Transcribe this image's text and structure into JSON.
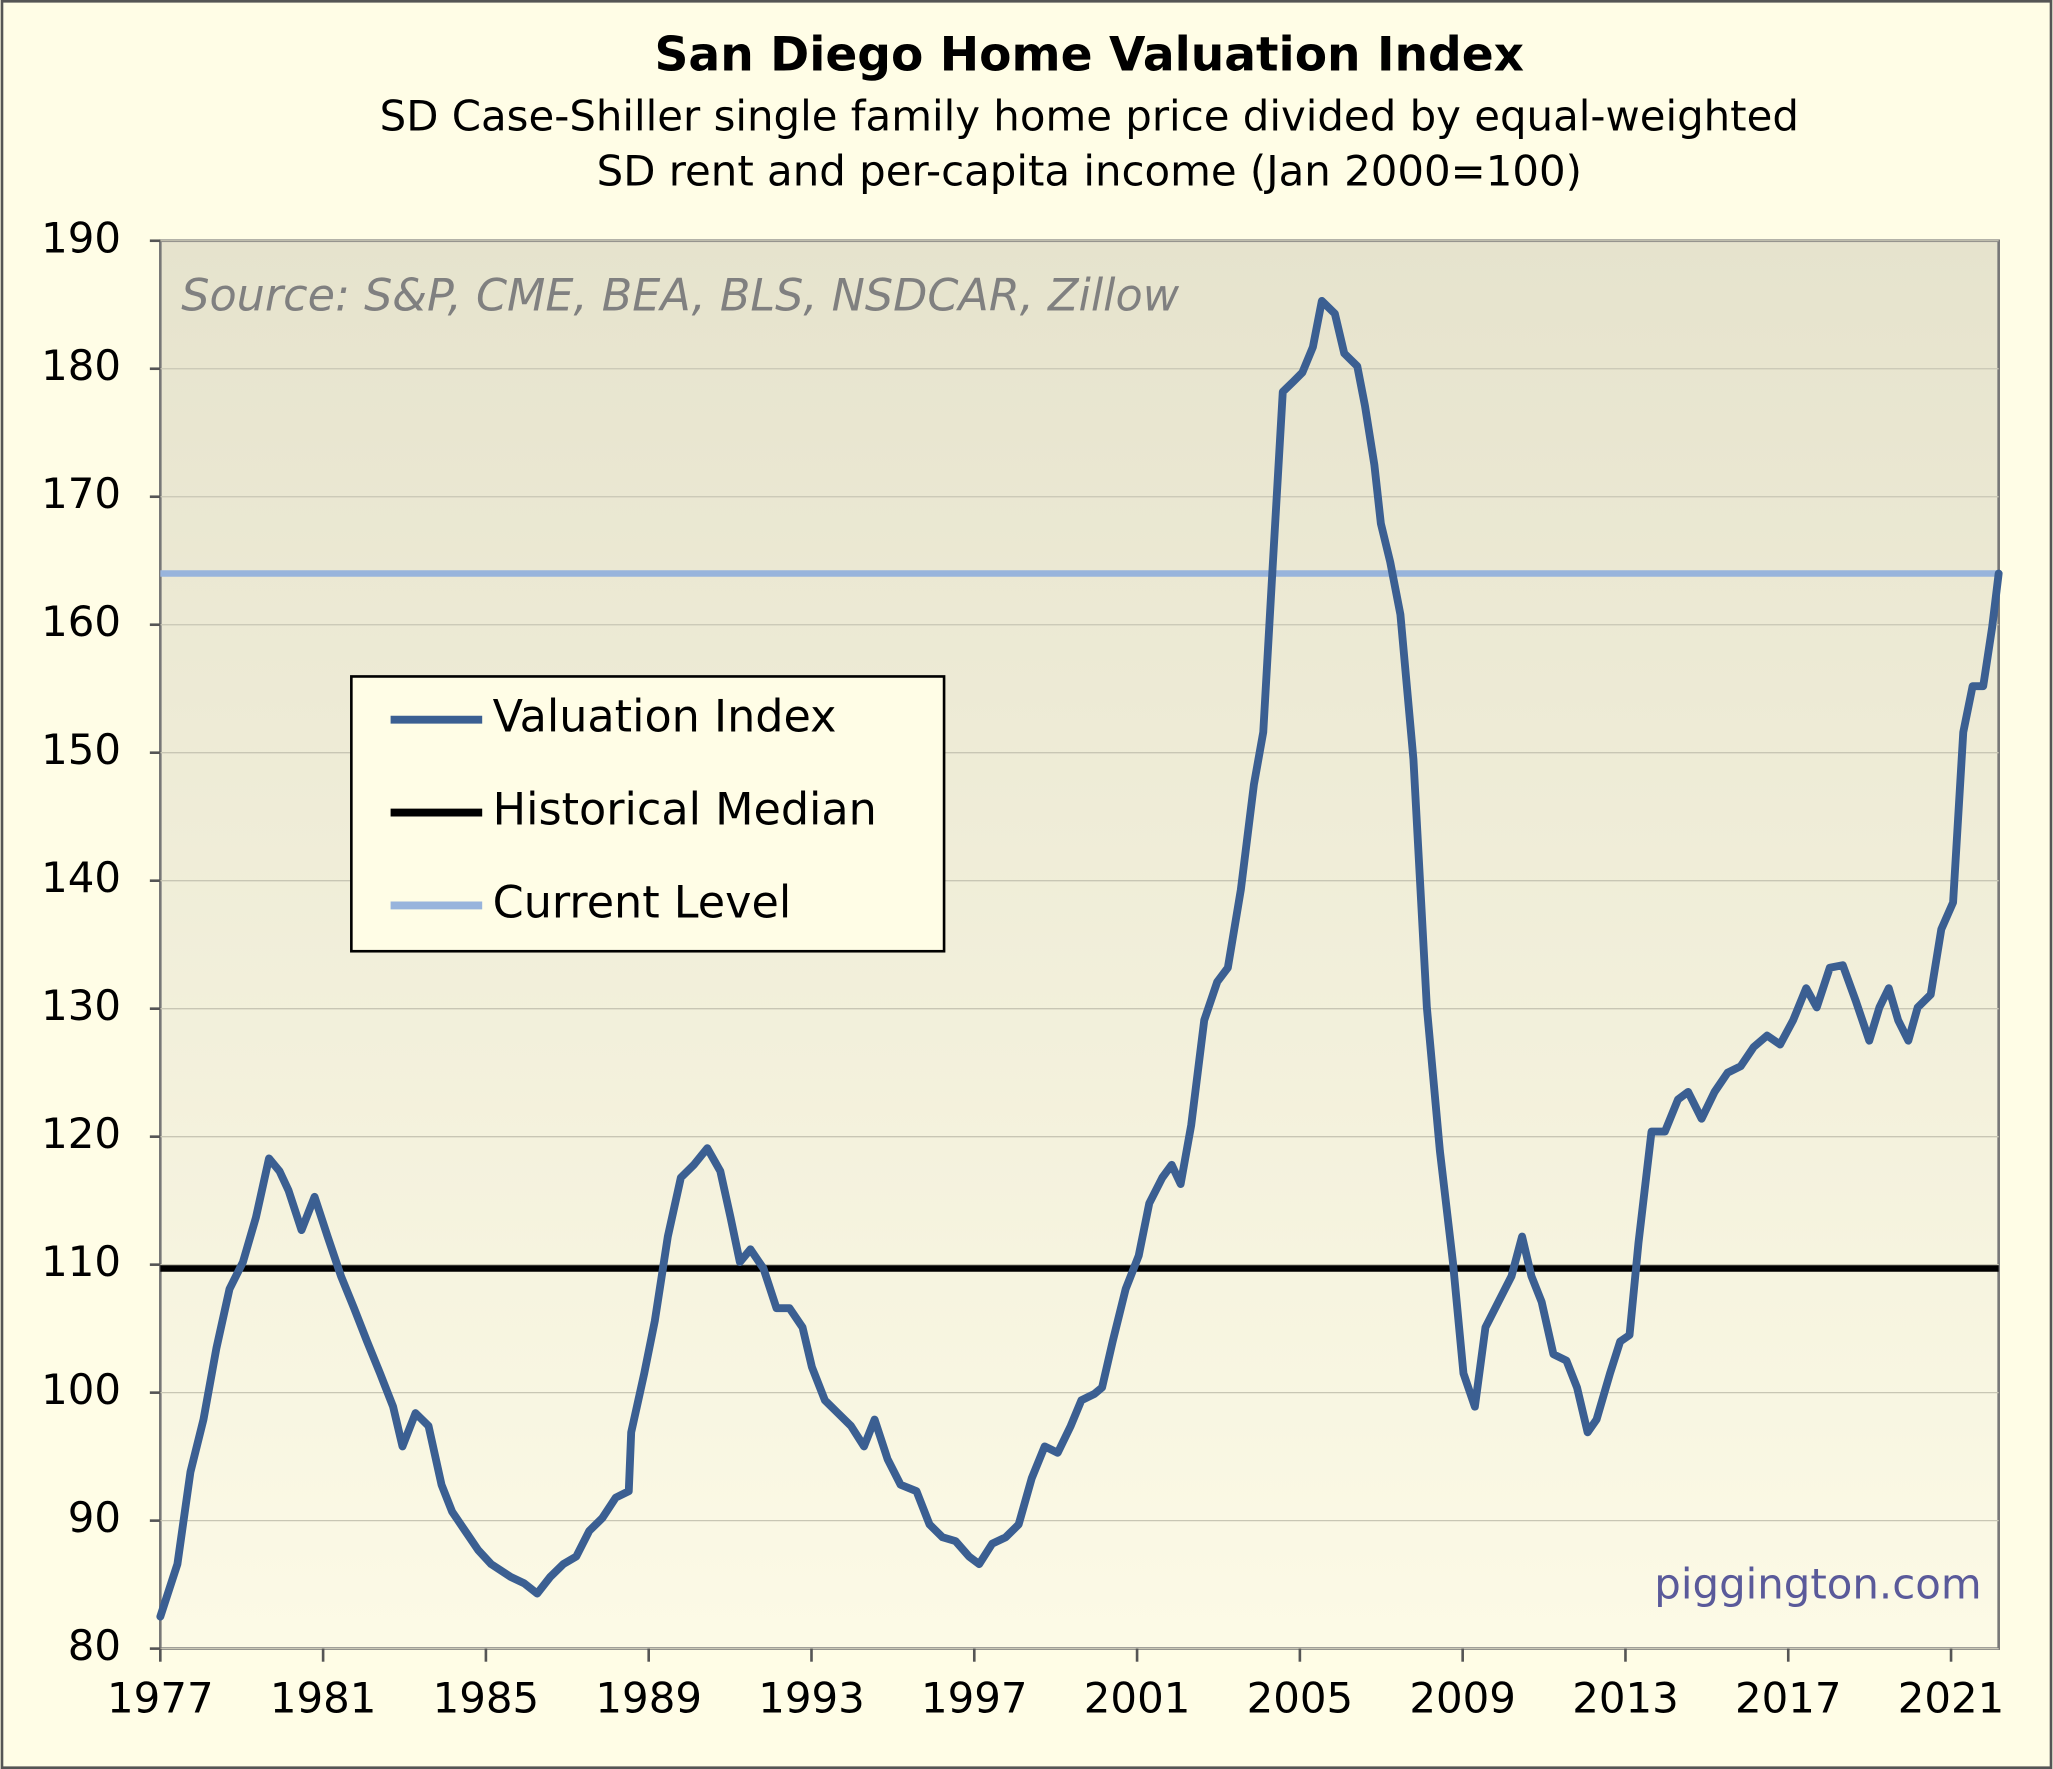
{
  "chart_data": {
    "type": "line",
    "title": "San Diego Home Valuation Index",
    "subtitle": [
      "SD Case-Shiller single family home price divided by equal-weighted",
      "SD rent and per-capita income (Jan 2000=100)"
    ],
    "source": "Source: S&P, CME, BEA, BLS, NSDCAR, Zillow",
    "watermark": "piggington.com",
    "xlim": [
      1977,
      2022.17
    ],
    "xticks": [
      1977,
      1981,
      1985,
      1989,
      1993,
      1997,
      2001,
      2005,
      2009,
      2013,
      2017,
      2021
    ],
    "ylim": [
      80,
      190
    ],
    "yticks": [
      80,
      90,
      100,
      110,
      120,
      130,
      140,
      150,
      160,
      170,
      180,
      190
    ],
    "grid": true,
    "series": [
      {
        "name": "Valuation Index",
        "color": "#3b5f92",
        "x": [
          1977.0,
          1977.42,
          1977.74,
          1978.06,
          1978.38,
          1978.7,
          1979.03,
          1979.35,
          1979.67,
          1979.93,
          1980.15,
          1980.47,
          1980.79,
          1981.11,
          1981.44,
          1981.76,
          1982.08,
          1982.4,
          1982.72,
          1982.95,
          1983.27,
          1983.59,
          1983.91,
          1984.17,
          1984.49,
          1984.81,
          1985.13,
          1985.61,
          1985.94,
          1986.26,
          1986.58,
          1986.9,
          1987.22,
          1987.54,
          1987.86,
          1988.19,
          1988.51,
          1988.57,
          1988.89,
          1989.15,
          1989.47,
          1989.79,
          1990.11,
          1990.44,
          1990.76,
          1991.01,
          1991.24,
          1991.5,
          1991.82,
          1992.14,
          1992.46,
          1992.78,
          1993.01,
          1993.33,
          1993.65,
          1993.97,
          1994.29,
          1994.55,
          1994.87,
          1995.19,
          1995.58,
          1995.9,
          1996.22,
          1996.54,
          1996.87,
          1997.12,
          1997.44,
          1997.77,
          1998.09,
          1998.41,
          1998.73,
          1999.05,
          1999.37,
          1999.63,
          1999.95,
          2000.14,
          2000.4,
          2000.72,
          2001.04,
          2001.3,
          2001.62,
          2001.85,
          2002.07,
          2002.33,
          2002.65,
          2002.97,
          2003.23,
          2003.55,
          2003.87,
          2004.1,
          2004.32,
          2004.58,
          2004.84,
          2005.06,
          2005.32,
          2005.54,
          2005.86,
          2006.09,
          2006.41,
          2006.6,
          2006.83,
          2006.99,
          2007.22,
          2007.47,
          2007.79,
          2008.12,
          2008.44,
          2008.76,
          2009.02,
          2009.3,
          2009.56,
          2009.88,
          2010.2,
          2010.46,
          2010.69,
          2010.94,
          2011.23,
          2011.55,
          2011.81,
          2012.07,
          2012.29,
          2012.62,
          2012.87,
          2013.1,
          2013.32,
          2013.64,
          2013.97,
          2014.29,
          2014.54,
          2014.87,
          2015.19,
          2015.51,
          2015.83,
          2016.15,
          2016.48,
          2016.8,
          2017.12,
          2017.44,
          2017.7,
          2018.02,
          2018.34,
          2018.66,
          2018.99,
          2019.24,
          2019.47,
          2019.7,
          2019.95,
          2020.18,
          2020.5,
          2020.76,
          2021.05,
          2021.3,
          2021.53,
          2021.79,
          2022.01,
          2022.17
        ],
        "values": [
          82.5,
          86.6,
          93.8,
          97.9,
          103.5,
          108.1,
          110.2,
          113.7,
          118.3,
          117.3,
          115.8,
          112.7,
          115.3,
          112.2,
          109.1,
          106.6,
          104.0,
          101.5,
          98.9,
          95.8,
          98.4,
          97.4,
          92.8,
          90.7,
          89.2,
          87.7,
          86.6,
          85.6,
          85.1,
          84.3,
          85.6,
          86.6,
          87.2,
          89.2,
          90.2,
          91.8,
          92.3,
          96.9,
          101.5,
          105.6,
          112.2,
          116.8,
          117.8,
          119.1,
          117.3,
          113.7,
          110.2,
          111.2,
          109.7,
          106.6,
          106.6,
          105.1,
          102.0,
          99.4,
          98.4,
          97.4,
          95.8,
          97.9,
          94.8,
          92.8,
          92.3,
          89.7,
          88.7,
          88.4,
          87.2,
          86.6,
          88.2,
          88.7,
          89.7,
          93.3,
          95.8,
          95.3,
          97.4,
          99.4,
          99.9,
          100.4,
          104.0,
          108.1,
          110.7,
          114.8,
          116.8,
          117.8,
          116.3,
          120.9,
          129.1,
          132.1,
          133.2,
          139.3,
          147.5,
          151.6,
          163.9,
          178.2,
          179.0,
          179.7,
          181.7,
          185.3,
          184.3,
          181.2,
          180.2,
          177.1,
          172.5,
          167.9,
          164.9,
          160.8,
          149.5,
          130.1,
          118.9,
          110.2,
          101.5,
          98.9,
          105.1,
          107.1,
          109.1,
          112.2,
          109.1,
          107.1,
          103.0,
          102.5,
          100.4,
          96.9,
          97.9,
          101.5,
          104.0,
          104.5,
          111.7,
          120.4,
          120.4,
          122.9,
          123.5,
          121.4,
          123.5,
          125.0,
          125.5,
          127.0,
          127.9,
          127.2,
          129.1,
          131.6,
          130.1,
          133.2,
          133.4,
          130.6,
          127.5,
          130.1,
          131.6,
          129.1,
          127.5,
          130.1,
          131.1,
          136.2,
          138.3,
          151.6,
          155.2,
          155.2,
          159.8,
          164.0
        ]
      }
    ],
    "reference_lines": [
      {
        "name": "Historical Median",
        "color": "#000000",
        "value": 109.7
      },
      {
        "name": "Current Level",
        "color": "#98b4dc",
        "value": 164
      }
    ]
  }
}
